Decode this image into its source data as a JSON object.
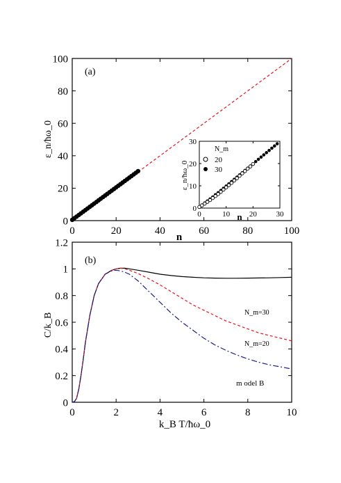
{
  "chart_data": [
    {
      "panel": "(a)",
      "type": "scatter",
      "xlabel": "n",
      "ylabel": "ε_n/ħω_0",
      "xlim": [
        0,
        100
      ],
      "ylim": [
        0,
        100
      ],
      "x_ticks": [
        "0",
        "20",
        "40",
        "60",
        "80",
        "100"
      ],
      "y_ticks": [
        "0",
        "20",
        "40",
        "60",
        "80",
        "100"
      ],
      "series": [
        {
          "style": "filled-circles",
          "x": [
            0,
            1,
            2,
            3,
            4,
            5,
            6,
            7,
            8,
            9,
            10,
            11,
            12,
            13,
            14,
            15,
            16,
            17,
            18,
            19,
            20,
            21,
            22,
            23,
            24,
            25,
            26,
            27,
            28,
            29,
            30
          ],
          "y": [
            0.5,
            1.5,
            2.5,
            3.5,
            4.5,
            5.5,
            6.5,
            7.5,
            8.5,
            9.5,
            10.5,
            11.5,
            12.5,
            13.5,
            14.5,
            15.5,
            16.5,
            17.5,
            18.5,
            19.5,
            20.5,
            21.5,
            22.5,
            23.5,
            24.5,
            25.5,
            26.5,
            27.5,
            28.5,
            29.5,
            30.5
          ]
        },
        {
          "style": "red-dashed-line",
          "x": [
            30,
            100
          ],
          "y": [
            30,
            100
          ]
        }
      ],
      "inset": {
        "xlabel": "n",
        "ylabel": "ε_n/ħω_0",
        "xlim": [
          0,
          30
        ],
        "ylim": [
          0,
          30
        ],
        "x_ticks": [
          "0",
          "10",
          "20",
          "30"
        ],
        "y_ticks": [
          "0",
          "10",
          "20",
          "30"
        ],
        "legend_title": "N_m",
        "series": [
          {
            "name": "20",
            "style": "open-circles",
            "x": [
              0,
              1,
              2,
              3,
              4,
              5,
              6,
              7,
              8,
              9,
              10,
              11,
              12,
              13,
              14,
              15,
              16,
              17,
              18,
              19,
              20
            ],
            "y": [
              0.5,
              1.2,
              2.0,
              2.8,
              3.6,
              4.5,
              5.4,
              6.3,
              7.3,
              8.3,
              9.3,
              10.3,
              11.3,
              12.4,
              13.4,
              14.5,
              15.6,
              16.6,
              17.7,
              18.7,
              19.8
            ]
          },
          {
            "name": "30",
            "style": "filled-circles",
            "x": [
              0,
              1,
              2,
              3,
              4,
              5,
              6,
              7,
              8,
              9,
              10,
              11,
              12,
              13,
              14,
              15,
              16,
              17,
              18,
              19,
              20,
              21,
              22,
              23,
              24,
              25,
              26,
              27,
              28,
              29
            ],
            "y": [
              0.5,
              1.4,
              2.3,
              3.2,
              4.1,
              5.0,
              6.0,
              6.9,
              7.9,
              8.9,
              9.9,
              10.9,
              11.9,
              12.9,
              13.9,
              14.9,
              15.9,
              16.9,
              17.9,
              18.9,
              19.9,
              20.9,
              21.9,
              22.9,
              23.9,
              24.9,
              25.9,
              26.9,
              27.9,
              28.9
            ]
          }
        ]
      },
      "colors": {
        "dashed": "#e8141c",
        "markers": "#000000"
      }
    },
    {
      "panel": "(b)",
      "type": "line",
      "xlabel": "k_B T/ħω_0",
      "ylabel": "C/k_B",
      "xlim": [
        0,
        10
      ],
      "ylim": [
        0,
        1.2
      ],
      "x_ticks": [
        "0",
        "2",
        "4",
        "6",
        "8",
        "10"
      ],
      "y_ticks": [
        "0",
        "0.2",
        "0.4",
        "0.6",
        "0.8",
        "1",
        "1.2"
      ],
      "annotations": [
        "N_m=30",
        "N_m=20",
        "m odel B"
      ],
      "series": [
        {
          "style": "solid-black",
          "x": [
            0,
            0.1,
            0.2,
            0.3,
            0.4,
            0.5,
            0.6,
            0.8,
            1.0,
            1.2,
            1.5,
            1.8,
            2.0,
            2.2,
            2.4,
            2.6,
            3.0,
            3.5,
            4.0,
            4.5,
            5.0,
            5.5,
            6.0,
            6.5,
            7.0,
            7.5,
            8.0,
            8.5,
            9.0,
            9.5,
            10.0
          ],
          "y": [
            0,
            0.005,
            0.03,
            0.1,
            0.2,
            0.32,
            0.45,
            0.65,
            0.8,
            0.89,
            0.96,
            0.99,
            1.0,
            1.005,
            1.005,
            1.0,
            0.99,
            0.975,
            0.96,
            0.95,
            0.942,
            0.937,
            0.933,
            0.931,
            0.93,
            0.93,
            0.931,
            0.932,
            0.933,
            0.935,
            0.937
          ]
        },
        {
          "name": "N_m=30",
          "style": "red-dashed",
          "x": [
            0,
            0.1,
            0.2,
            0.3,
            0.4,
            0.5,
            0.6,
            0.8,
            1.0,
            1.2,
            1.5,
            1.8,
            2.0,
            2.2,
            2.4,
            2.6,
            3.0,
            3.5,
            4.0,
            4.5,
            5.0,
            5.5,
            6.0,
            6.5,
            7.0,
            7.5,
            8.0,
            8.5,
            9.0,
            9.5,
            10.0
          ],
          "y": [
            0,
            0.005,
            0.03,
            0.1,
            0.2,
            0.32,
            0.45,
            0.65,
            0.8,
            0.89,
            0.96,
            0.99,
            1.0,
            1.005,
            1.0,
            0.99,
            0.965,
            0.925,
            0.88,
            0.83,
            0.78,
            0.73,
            0.69,
            0.65,
            0.61,
            0.58,
            0.55,
            0.52,
            0.5,
            0.48,
            0.46
          ]
        },
        {
          "name": "N_m=20",
          "style": "blue-dashdot",
          "x": [
            0,
            0.1,
            0.2,
            0.3,
            0.4,
            0.5,
            0.6,
            0.8,
            1.0,
            1.2,
            1.5,
            1.8,
            2.0,
            2.2,
            2.4,
            2.6,
            3.0,
            3.5,
            4.0,
            4.5,
            5.0,
            5.5,
            6.0,
            6.5,
            7.0,
            7.5,
            8.0,
            8.5,
            9.0,
            9.5,
            10.0
          ],
          "y": [
            0,
            0.005,
            0.03,
            0.1,
            0.2,
            0.32,
            0.45,
            0.65,
            0.8,
            0.89,
            0.96,
            0.985,
            0.99,
            0.985,
            0.975,
            0.96,
            0.91,
            0.83,
            0.75,
            0.67,
            0.6,
            0.54,
            0.48,
            0.43,
            0.39,
            0.355,
            0.325,
            0.3,
            0.28,
            0.265,
            0.25
          ]
        }
      ],
      "colors": {
        "solid": "#000000",
        "dashed": "#e8141c",
        "dashdot": "#1c1c8c"
      }
    }
  ]
}
